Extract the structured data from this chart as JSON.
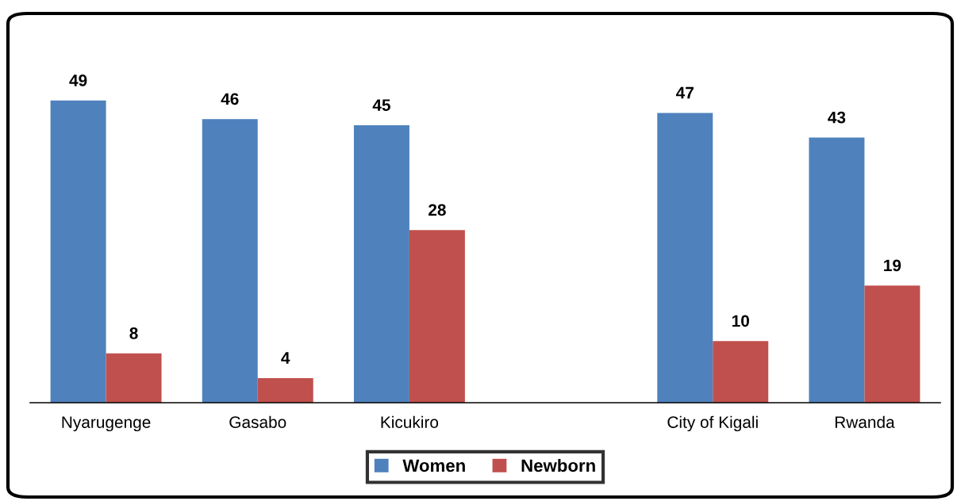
{
  "chart_data": {
    "type": "bar",
    "categories": [
      "Nyarugenge",
      "Gasabo",
      "Kicukiro",
      null,
      "City of Kigali",
      "Rwanda"
    ],
    "series": [
      {
        "name": "Women",
        "color": "#4f81bd",
        "values": [
          49,
          46,
          45,
          null,
          47,
          43
        ]
      },
      {
        "name": "Newborn",
        "color": "#c0504d",
        "values": [
          8,
          4,
          28,
          null,
          10,
          19
        ]
      }
    ],
    "data_labels": true,
    "legend": "bottom",
    "grid": false,
    "tick_labels": "x"
  }
}
